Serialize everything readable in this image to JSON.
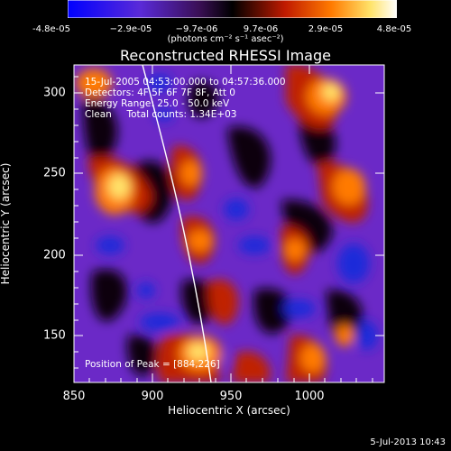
{
  "colorbar": {
    "ticks": [
      "-4.8e-05",
      "−2.9e-05",
      "−9.7e-06",
      "9.7e-06",
      "2.9e-05",
      "4.8e-05"
    ],
    "units": "(photons cm⁻² s⁻¹ asec⁻²)"
  },
  "plot": {
    "title": "Reconstructed RHESSI Image",
    "info_lines": [
      "15-Jul-2005 04:53:00.000 to 04:57:36.000",
      "Detectors: 4F 5F 6F 7F 8F, Att 0",
      "Energy Range: 25.0 - 50.0 keV",
      "Clean     Total counts: 1.34E+03"
    ],
    "peak": "Position of Peak = [884,226]",
    "x_axis": {
      "label": "Heliocentric X (arcsec)",
      "ticks": [
        "850",
        "900",
        "950",
        "1000"
      ]
    },
    "y_axis": {
      "label": "Heliocentric Y (arcsec)",
      "ticks": [
        "300",
        "250",
        "200",
        "150"
      ]
    }
  },
  "footer": {
    "timestamp": "5-Jul-2013 10:43"
  },
  "colors": {
    "blue": "#1f2bd9",
    "purple": "#7a2ed8",
    "black": "#0b0010",
    "red": "#c02000",
    "orange": "#ff7a00",
    "yellow": "#ffe36a",
    "white": "#ffffff"
  }
}
